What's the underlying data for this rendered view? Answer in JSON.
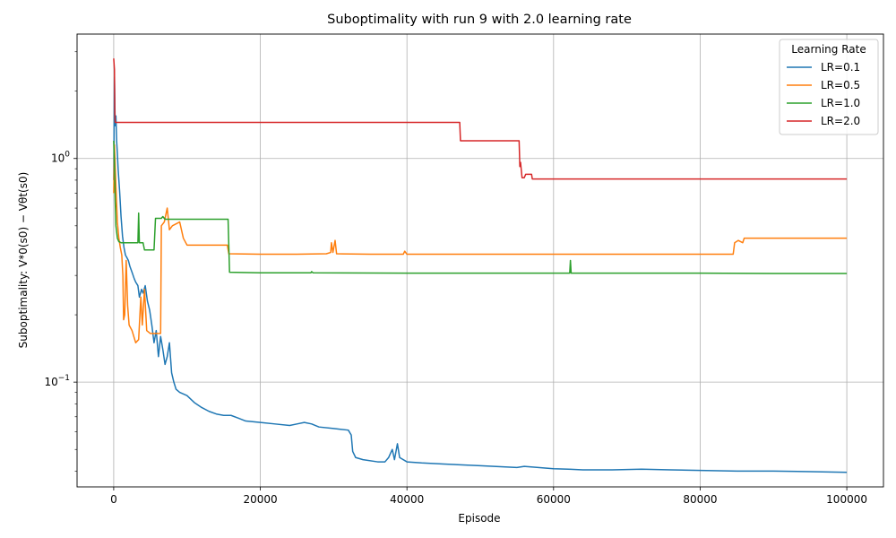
{
  "chart_data": {
    "type": "line",
    "title": "Suboptimality with run 9 with 2.0 learning rate",
    "xlabel": "Episode",
    "ylabel": "Suboptimality: V*0(s0) − Vθt(s0)",
    "xlim": [
      -5000,
      105000
    ],
    "ylim": [
      0.034,
      3.6
    ],
    "yscale": "log",
    "grid": true,
    "x_ticks": [
      0,
      20000,
      40000,
      60000,
      80000,
      100000
    ],
    "x_tick_labels": [
      "0",
      "20000",
      "40000",
      "60000",
      "80000",
      "100000"
    ],
    "y_ticks": [
      0.1,
      1
    ],
    "legend": {
      "title": "Learning Rate",
      "placement": "top-right"
    },
    "series": [
      {
        "name": "LR=0.1",
        "color": "#1f77b4",
        "points": [
          [
            0,
            0.8
          ],
          [
            100,
            2.3
          ],
          [
            200,
            1.4
          ],
          [
            300,
            1.55
          ],
          [
            400,
            1.2
          ],
          [
            500,
            1.05
          ],
          [
            600,
            0.9
          ],
          [
            800,
            0.72
          ],
          [
            1000,
            0.55
          ],
          [
            1200,
            0.45
          ],
          [
            1400,
            0.4
          ],
          [
            1600,
            0.37
          ],
          [
            1800,
            0.36
          ],
          [
            2000,
            0.35
          ],
          [
            2200,
            0.33
          ],
          [
            2500,
            0.31
          ],
          [
            2800,
            0.29
          ],
          [
            3000,
            0.28
          ],
          [
            3300,
            0.27
          ],
          [
            3500,
            0.24
          ],
          [
            3800,
            0.26
          ],
          [
            4000,
            0.25
          ],
          [
            4300,
            0.27
          ],
          [
            4600,
            0.23
          ],
          [
            4900,
            0.21
          ],
          [
            5200,
            0.18
          ],
          [
            5500,
            0.15
          ],
          [
            5800,
            0.17
          ],
          [
            6100,
            0.13
          ],
          [
            6400,
            0.16
          ],
          [
            6700,
            0.14
          ],
          [
            7000,
            0.12
          ],
          [
            7300,
            0.13
          ],
          [
            7600,
            0.15
          ],
          [
            7900,
            0.11
          ],
          [
            8200,
            0.1
          ],
          [
            8500,
            0.093
          ],
          [
            9000,
            0.09
          ],
          [
            10000,
            0.087
          ],
          [
            11000,
            0.081
          ],
          [
            12000,
            0.077
          ],
          [
            13000,
            0.074
          ],
          [
            14000,
            0.072
          ],
          [
            15000,
            0.071
          ],
          [
            16000,
            0.071
          ],
          [
            17000,
            0.069
          ],
          [
            18000,
            0.067
          ],
          [
            20000,
            0.066
          ],
          [
            22000,
            0.065
          ],
          [
            24000,
            0.064
          ],
          [
            25000,
            0.065
          ],
          [
            26000,
            0.066
          ],
          [
            27000,
            0.065
          ],
          [
            28000,
            0.063
          ],
          [
            30000,
            0.062
          ],
          [
            32000,
            0.061
          ],
          [
            32400,
            0.058
          ],
          [
            32600,
            0.049
          ],
          [
            33000,
            0.046
          ],
          [
            34000,
            0.045
          ],
          [
            36000,
            0.044
          ],
          [
            37000,
            0.044
          ],
          [
            37500,
            0.046
          ],
          [
            38000,
            0.05
          ],
          [
            38300,
            0.045
          ],
          [
            38700,
            0.053
          ],
          [
            39000,
            0.046
          ],
          [
            40000,
            0.044
          ],
          [
            42000,
            0.0435
          ],
          [
            45000,
            0.043
          ],
          [
            50000,
            0.0423
          ],
          [
            55000,
            0.0415
          ],
          [
            56000,
            0.042
          ],
          [
            60000,
            0.041
          ],
          [
            62000,
            0.0408
          ],
          [
            64000,
            0.0405
          ],
          [
            68000,
            0.0405
          ],
          [
            72000,
            0.0408
          ],
          [
            76000,
            0.0405
          ],
          [
            80000,
            0.0403
          ],
          [
            85000,
            0.04
          ],
          [
            90000,
            0.04
          ],
          [
            95000,
            0.0398
          ],
          [
            100000,
            0.0395
          ]
        ]
      },
      {
        "name": "LR=0.5",
        "color": "#ff7f0e",
        "points": [
          [
            0,
            0.7
          ],
          [
            100,
            1.15
          ],
          [
            300,
            0.75
          ],
          [
            500,
            0.52
          ],
          [
            700,
            0.44
          ],
          [
            900,
            0.4
          ],
          [
            1100,
            0.37
          ],
          [
            1250,
            0.3
          ],
          [
            1350,
            0.19
          ],
          [
            1500,
            0.2
          ],
          [
            1700,
            0.35
          ],
          [
            1900,
            0.22
          ],
          [
            2100,
            0.18
          ],
          [
            2500,
            0.17
          ],
          [
            3000,
            0.15
          ],
          [
            3400,
            0.155
          ],
          [
            3700,
            0.24
          ],
          [
            3900,
            0.18
          ],
          [
            4200,
            0.26
          ],
          [
            4500,
            0.17
          ],
          [
            5000,
            0.165
          ],
          [
            5800,
            0.165
          ],
          [
            6400,
            0.165
          ],
          [
            6500,
            0.5
          ],
          [
            6900,
            0.52
          ],
          [
            7300,
            0.6
          ],
          [
            7600,
            0.48
          ],
          [
            8000,
            0.5
          ],
          [
            9000,
            0.52
          ],
          [
            9500,
            0.44
          ],
          [
            10000,
            0.41
          ],
          [
            12000,
            0.41
          ],
          [
            14000,
            0.41
          ],
          [
            15500,
            0.41
          ],
          [
            15700,
            0.375
          ],
          [
            20000,
            0.373
          ],
          [
            25000,
            0.373
          ],
          [
            29000,
            0.375
          ],
          [
            29600,
            0.38
          ],
          [
            29700,
            0.42
          ],
          [
            29900,
            0.38
          ],
          [
            30200,
            0.43
          ],
          [
            30400,
            0.375
          ],
          [
            35000,
            0.373
          ],
          [
            39500,
            0.373
          ],
          [
            39700,
            0.385
          ],
          [
            40000,
            0.373
          ],
          [
            50000,
            0.373
          ],
          [
            60000,
            0.373
          ],
          [
            70000,
            0.373
          ],
          [
            80000,
            0.373
          ],
          [
            84500,
            0.373
          ],
          [
            84700,
            0.42
          ],
          [
            85200,
            0.43
          ],
          [
            85800,
            0.42
          ],
          [
            86000,
            0.44
          ],
          [
            90000,
            0.44
          ],
          [
            95000,
            0.44
          ],
          [
            100000,
            0.44
          ]
        ]
      },
      {
        "name": "LR=1.0",
        "color": "#2ca02c",
        "points": [
          [
            0,
            1.2
          ],
          [
            100,
            0.95
          ],
          [
            200,
            0.65
          ],
          [
            300,
            0.5
          ],
          [
            500,
            0.44
          ],
          [
            700,
            0.425
          ],
          [
            1000,
            0.42
          ],
          [
            2000,
            0.42
          ],
          [
            3000,
            0.42
          ],
          [
            3300,
            0.42
          ],
          [
            3400,
            0.57
          ],
          [
            3500,
            0.42
          ],
          [
            4000,
            0.42
          ],
          [
            4200,
            0.39
          ],
          [
            5500,
            0.39
          ],
          [
            5700,
            0.54
          ],
          [
            6500,
            0.54
          ],
          [
            6700,
            0.55
          ],
          [
            7000,
            0.535
          ],
          [
            10000,
            0.535
          ],
          [
            15600,
            0.535
          ],
          [
            15800,
            0.31
          ],
          [
            20000,
            0.308
          ],
          [
            26900,
            0.308
          ],
          [
            27000,
            0.312
          ],
          [
            27200,
            0.308
          ],
          [
            40000,
            0.307
          ],
          [
            50000,
            0.307
          ],
          [
            62200,
            0.307
          ],
          [
            62300,
            0.35
          ],
          [
            62400,
            0.307
          ],
          [
            70000,
            0.307
          ],
          [
            80000,
            0.307
          ],
          [
            90000,
            0.306
          ],
          [
            100000,
            0.306
          ]
        ]
      },
      {
        "name": "LR=2.0",
        "color": "#d62728",
        "points": [
          [
            0,
            2.8
          ],
          [
            100,
            2.5
          ],
          [
            150,
            1.6
          ],
          [
            200,
            1.45
          ],
          [
            10000,
            1.45
          ],
          [
            20000,
            1.45
          ],
          [
            30000,
            1.45
          ],
          [
            40000,
            1.45
          ],
          [
            47200,
            1.45
          ],
          [
            47300,
            1.2
          ],
          [
            55300,
            1.2
          ],
          [
            55400,
            0.92
          ],
          [
            55500,
            0.96
          ],
          [
            55700,
            0.82
          ],
          [
            56000,
            0.82
          ],
          [
            56200,
            0.85
          ],
          [
            57000,
            0.85
          ],
          [
            57100,
            0.81
          ],
          [
            70000,
            0.81
          ],
          [
            80000,
            0.81
          ],
          [
            90000,
            0.81
          ],
          [
            100000,
            0.81
          ]
        ]
      }
    ]
  }
}
